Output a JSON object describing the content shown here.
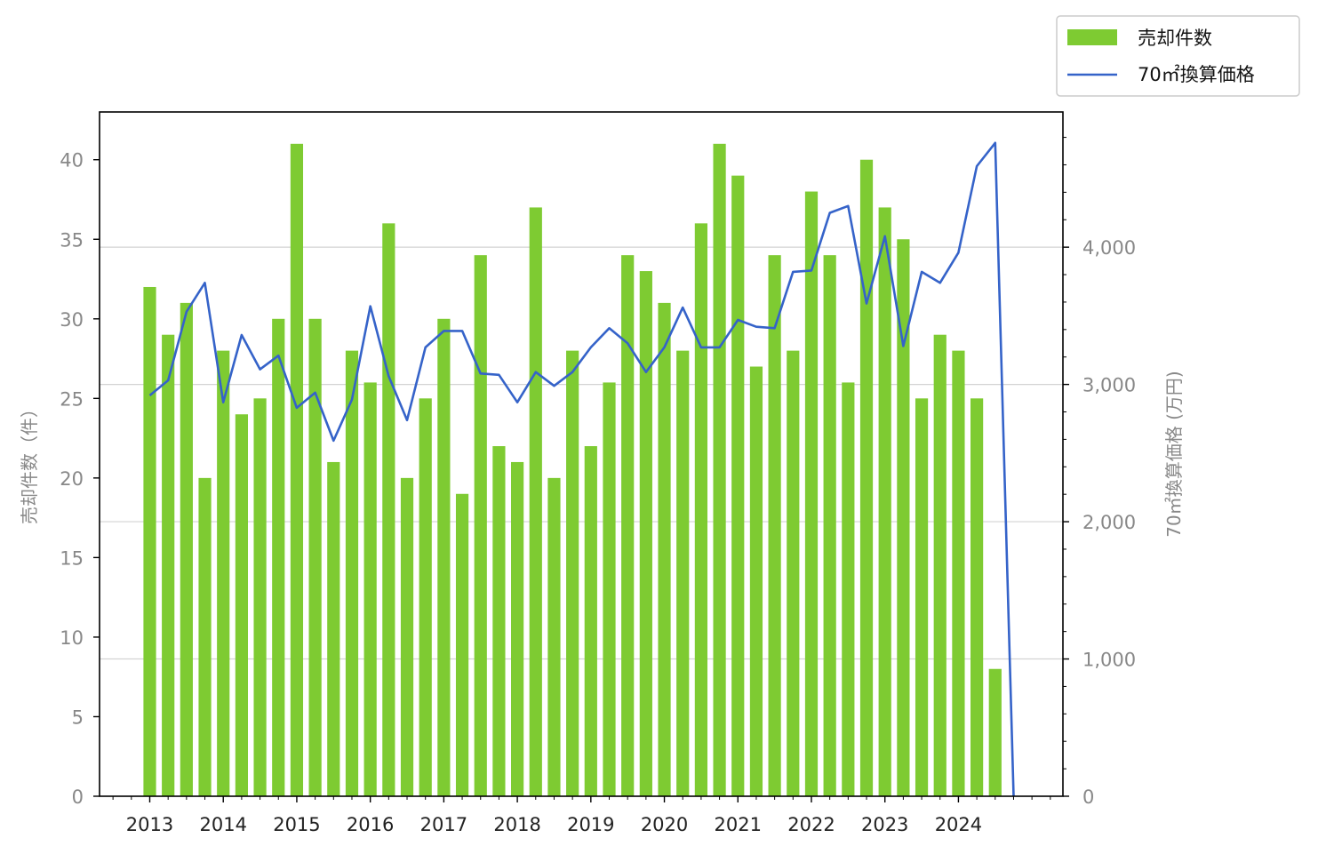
{
  "chart_data": {
    "type": "bar",
    "colors": {
      "bar": "#7ecb32",
      "line": "#3563c9",
      "grid": "#d3d3d3",
      "tick_label": "#888888"
    },
    "legend": {
      "position": "top-right, outside plot",
      "bar_label": "売却件数",
      "line_label": "70㎡換算価格"
    },
    "ylabel_left": "売却件数（件）",
    "ylabel_right": "70㎡換算価格 (万円)",
    "ylim_left": [
      0,
      43
    ],
    "ylim_right": [
      0,
      4985
    ],
    "yticks_left": [
      0,
      5,
      10,
      15,
      20,
      25,
      30,
      35,
      40
    ],
    "yticks_right": [
      0,
      1000,
      2000,
      3000,
      4000
    ],
    "ytick_labels_right": [
      "0",
      "1,000",
      "2,000",
      "3,000",
      "4,000"
    ],
    "xticks": [
      "2013",
      "2014",
      "2015",
      "2016",
      "2017",
      "2018",
      "2019",
      "2020",
      "2021",
      "2022",
      "2023",
      "2024"
    ],
    "grid": "horizontal, right axis",
    "categories": [
      "2013Q1",
      "2013Q2",
      "2013Q3",
      "2013Q4",
      "2014Q1",
      "2014Q2",
      "2014Q3",
      "2014Q4",
      "2015Q1",
      "2015Q2",
      "2015Q3",
      "2015Q4",
      "2016Q1",
      "2016Q2",
      "2016Q3",
      "2016Q4",
      "2017Q1",
      "2017Q2",
      "2017Q3",
      "2017Q4",
      "2018Q1",
      "2018Q2",
      "2018Q3",
      "2018Q4",
      "2019Q1",
      "2019Q2",
      "2019Q3",
      "2019Q4",
      "2020Q1",
      "2020Q2",
      "2020Q3",
      "2020Q4",
      "2021Q1",
      "2021Q2",
      "2021Q3",
      "2021Q4",
      "2022Q1",
      "2022Q2",
      "2022Q3",
      "2022Q4",
      "2023Q1",
      "2023Q2",
      "2023Q3",
      "2023Q4",
      "2024Q1",
      "2024Q2",
      "2024Q3",
      "2024Q4"
    ],
    "series": [
      {
        "name": "売却件数",
        "axis": "left",
        "kind": "bar",
        "values": [
          32,
          29,
          31,
          20,
          28,
          24,
          25,
          30,
          41,
          30,
          21,
          28,
          26,
          36,
          20,
          25,
          30,
          19,
          34,
          22,
          21,
          37,
          20,
          28,
          22,
          26,
          34,
          33,
          31,
          28,
          36,
          41,
          39,
          27,
          34,
          28,
          38,
          34,
          26,
          40,
          37,
          35,
          25,
          29,
          28,
          25,
          8,
          0
        ]
      },
      {
        "name": "70㎡換算価格",
        "axis": "right",
        "kind": "line",
        "values": [
          2920,
          3030,
          3530,
          3740,
          2870,
          3360,
          3110,
          3210,
          2830,
          2940,
          2590,
          2890,
          3570,
          3060,
          2740,
          3270,
          3390,
          3390,
          3080,
          3070,
          2870,
          3090,
          2990,
          3090,
          3270,
          3410,
          3300,
          3090,
          3270,
          3560,
          3270,
          3270,
          3470,
          3420,
          3410,
          3820,
          3830,
          4250,
          4300,
          3590,
          4080,
          3280,
          3820,
          3740,
          3960,
          4590,
          4760,
          0
        ]
      }
    ]
  }
}
